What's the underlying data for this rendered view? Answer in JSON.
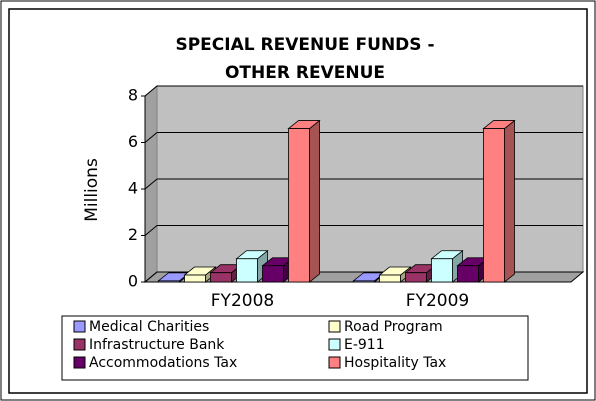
{
  "chart_data": {
    "type": "bar3d",
    "title": [
      "SPECIAL REVENUE FUNDS -",
      "OTHER REVENUE"
    ],
    "y_label": "Millions",
    "categories": [
      "FY2008",
      "FY2009"
    ],
    "series": [
      {
        "name": "Medical Charities",
        "color": "#9999ff",
        "values": [
          0.05,
          0.05
        ]
      },
      {
        "name": "Road Program",
        "color": "#ffffcc",
        "values": [
          0.3,
          0.3
        ]
      },
      {
        "name": "Infrastructure Bank",
        "color": "#993366",
        "values": [
          0.4,
          0.4
        ]
      },
      {
        "name": "E-911",
        "color": "#ccffff",
        "values": [
          1.0,
          1.0
        ]
      },
      {
        "name": "Accommodations Tax",
        "color": "#660066",
        "values": [
          0.7,
          0.7
        ]
      },
      {
        "name": "Hospitality Tax",
        "color": "#ff8080",
        "values": [
          6.6,
          6.6
        ]
      }
    ],
    "ylim": [
      0,
      8
    ],
    "yticks": [
      0,
      2,
      4,
      6,
      8
    ],
    "grid": true,
    "legend": "bottom"
  }
}
